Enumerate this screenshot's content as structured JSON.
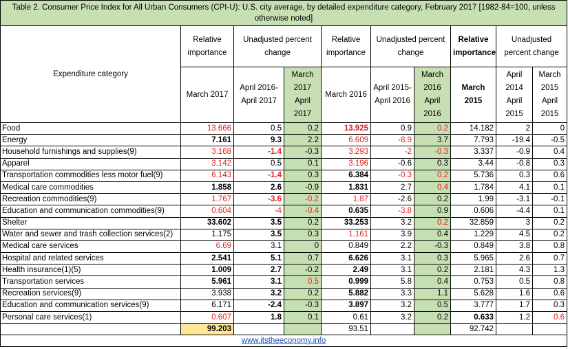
{
  "title": "Table 2. Consumer Price Index for All Urban Consumers (CPI-U): U.S. city average, by detailed expenditure category, February 2017 [1982-84=100, unless otherwise noted]",
  "header": {
    "category_label": "Expenditure category",
    "groups": [
      {
        "label": "Relative importance",
        "bold": false
      },
      {
        "label": "Unadjusted percent change",
        "bold": false
      },
      {
        "label": "Relative importance",
        "bold": false
      },
      {
        "label": "Unadjusted percent change",
        "bold": false
      },
      {
        "label": "Relative importance",
        "bold": true
      },
      {
        "label": "Unadjusted percent change",
        "bold": false
      }
    ],
    "subheaders": [
      {
        "label": "March 2017",
        "bold": false,
        "green": false
      },
      {
        "label": "April 2016-April 2017",
        "bold": false,
        "green": false
      },
      {
        "label": "March 2017 April 2017",
        "bold": false,
        "green": true
      },
      {
        "label": "March 2016",
        "bold": false,
        "green": false
      },
      {
        "label": "April 2015-April 2016",
        "bold": false,
        "green": false
      },
      {
        "label": "March 2016 April 2016",
        "bold": false,
        "green": true
      },
      {
        "label": "March 2015",
        "bold": true,
        "green": false
      },
      {
        "label": "April 2014 April 2015",
        "bold": false,
        "green": false
      },
      {
        "label": "March 2015 April 2015",
        "bold": false,
        "green": false
      }
    ]
  },
  "colors": {
    "red": "#e02020",
    "green": "#c6e0b4",
    "yellow": "#ffe699",
    "link": "#1a52b8"
  },
  "rows": [
    {
      "category": "Food",
      "cells": [
        {
          "v": "13.666",
          "red": true
        },
        {
          "v": "0.5"
        },
        {
          "v": "0.2"
        },
        {
          "v": "13.925",
          "red": true,
          "bold": true
        },
        {
          "v": "0.9"
        },
        {
          "v": "0.2",
          "red": true
        },
        {
          "v": "14.182"
        },
        {
          "v": "2"
        },
        {
          "v": "0"
        }
      ]
    },
    {
      "category": "Energy",
      "cells": [
        {
          "v": "7.161",
          "bold": true
        },
        {
          "v": "9.3",
          "bold": true
        },
        {
          "v": "2.2"
        },
        {
          "v": "6.609",
          "red": true
        },
        {
          "v": "-8.9",
          "red": true
        },
        {
          "v": "3.7"
        },
        {
          "v": "7.793"
        },
        {
          "v": "-19.4"
        },
        {
          "v": "-0.5"
        }
      ]
    },
    {
      "category": "Household furnishings and supplies(9)",
      "cells": [
        {
          "v": "3.168",
          "red": true
        },
        {
          "v": "-1.4",
          "red": true,
          "bold": true
        },
        {
          "v": "-0.3"
        },
        {
          "v": "3.293",
          "red": true
        },
        {
          "v": "-2",
          "red": true
        },
        {
          "v": "-0.3",
          "red": true
        },
        {
          "v": "3.337"
        },
        {
          "v": "-0.9"
        },
        {
          "v": "0.4"
        }
      ]
    },
    {
      "category": "Apparel",
      "cells": [
        {
          "v": "3.142",
          "red": true
        },
        {
          "v": "0.5"
        },
        {
          "v": "0.1"
        },
        {
          "v": "3.196",
          "red": true
        },
        {
          "v": "-0.6"
        },
        {
          "v": "0.3"
        },
        {
          "v": "3.44"
        },
        {
          "v": "-0.8"
        },
        {
          "v": "0.3"
        }
      ]
    },
    {
      "category": "Transportation commodities less motor fuel(9)",
      "cells": [
        {
          "v": "6.143",
          "red": true
        },
        {
          "v": "-1.4",
          "red": true,
          "bold": true
        },
        {
          "v": "0.3"
        },
        {
          "v": "6.384",
          "bold": true
        },
        {
          "v": "-0.3",
          "red": true
        },
        {
          "v": "0.2",
          "red": true
        },
        {
          "v": "5.736"
        },
        {
          "v": "0.3"
        },
        {
          "v": "0.6"
        }
      ]
    },
    {
      "category": "Medical care commodities",
      "cells": [
        {
          "v": "1.858",
          "bold": true
        },
        {
          "v": "2.6",
          "bold": true
        },
        {
          "v": "-0.9"
        },
        {
          "v": "1.831",
          "bold": true
        },
        {
          "v": "2.7"
        },
        {
          "v": "0.4",
          "red": true
        },
        {
          "v": "1.784"
        },
        {
          "v": "4.1"
        },
        {
          "v": "0.1"
        }
      ]
    },
    {
      "category": "Recreation commodities(9)",
      "cells": [
        {
          "v": "1.767",
          "red": true
        },
        {
          "v": "-3.6",
          "red": true,
          "bold": true
        },
        {
          "v": "-0.2",
          "red": true
        },
        {
          "v": "1.87",
          "red": true
        },
        {
          "v": "-2.6"
        },
        {
          "v": "0.2"
        },
        {
          "v": "1.99"
        },
        {
          "v": "-3.1"
        },
        {
          "v": "-0.1"
        }
      ]
    },
    {
      "category": "Education and communication commodities(9)",
      "cells": [
        {
          "v": "0.604",
          "red": true
        },
        {
          "v": "-4",
          "red": true
        },
        {
          "v": "-0.4",
          "red": true
        },
        {
          "v": "0.635",
          "bold": true
        },
        {
          "v": "-3.8",
          "red": true
        },
        {
          "v": "0.9"
        },
        {
          "v": "0.606"
        },
        {
          "v": "-4.4"
        },
        {
          "v": "0.1"
        }
      ]
    },
    {
      "category": "Shelter",
      "cells": [
        {
          "v": "33.602",
          "bold": true
        },
        {
          "v": "3.5",
          "bold": true
        },
        {
          "v": "0.2"
        },
        {
          "v": "33.253",
          "bold": true
        },
        {
          "v": "3.2"
        },
        {
          "v": "0.2",
          "red": true
        },
        {
          "v": "32.859"
        },
        {
          "v": "3"
        },
        {
          "v": "0.2"
        }
      ]
    },
    {
      "category": "Water and sewer and trash collection services(2)",
      "cells": [
        {
          "v": "1.175"
        },
        {
          "v": "3.5",
          "bold": true
        },
        {
          "v": "0.3"
        },
        {
          "v": "1.161",
          "red": true
        },
        {
          "v": "3.9"
        },
        {
          "v": "0.4"
        },
        {
          "v": "1.229"
        },
        {
          "v": "4.5"
        },
        {
          "v": "0.2"
        }
      ]
    },
    {
      "category": "Medical care services",
      "cells": [
        {
          "v": "6.69",
          "red": true
        },
        {
          "v": "3.1"
        },
        {
          "v": "0"
        },
        {
          "v": "0.849"
        },
        {
          "v": "2.2"
        },
        {
          "v": "-0.3"
        },
        {
          "v": "0.849"
        },
        {
          "v": "3.8"
        },
        {
          "v": "0.8"
        }
      ]
    },
    {
      "category": "Hospital and related services",
      "cells": [
        {
          "v": "2.541",
          "bold": true
        },
        {
          "v": "5.1",
          "bold": true
        },
        {
          "v": "0.7"
        },
        {
          "v": "6.626",
          "bold": true
        },
        {
          "v": "3.1"
        },
        {
          "v": "0.3"
        },
        {
          "v": "5.965"
        },
        {
          "v": "2.6"
        },
        {
          "v": "0.7"
        }
      ]
    },
    {
      "category": "Health insurance(1)(5)",
      "cells": [
        {
          "v": "1.009",
          "bold": true
        },
        {
          "v": "2.7",
          "bold": true
        },
        {
          "v": "-0.2"
        },
        {
          "v": "2.49",
          "bold": true
        },
        {
          "v": "3.1"
        },
        {
          "v": "0.2"
        },
        {
          "v": "2.181"
        },
        {
          "v": "4.3"
        },
        {
          "v": "1.3"
        }
      ]
    },
    {
      "category": "Transportation services",
      "cells": [
        {
          "v": "5.961",
          "bold": true
        },
        {
          "v": "3.1",
          "bold": true
        },
        {
          "v": "0.5",
          "red": true
        },
        {
          "v": "0.999",
          "bold": true
        },
        {
          "v": "5.8"
        },
        {
          "v": "0.4"
        },
        {
          "v": "0.753"
        },
        {
          "v": "0.5"
        },
        {
          "v": "0.8"
        }
      ]
    },
    {
      "category": "Recreation services(9)",
      "cells": [
        {
          "v": "3.938"
        },
        {
          "v": "3.2",
          "bold": true
        },
        {
          "v": "0.2"
        },
        {
          "v": "5.882",
          "bold": true
        },
        {
          "v": "3.3"
        },
        {
          "v": "1.1"
        },
        {
          "v": "5.628"
        },
        {
          "v": "1.6"
        },
        {
          "v": "0.6"
        }
      ]
    },
    {
      "category": "Education and communication services(9)",
      "cells": [
        {
          "v": "6.171"
        },
        {
          "v": "-2.4",
          "bold": true
        },
        {
          "v": "-0.3"
        },
        {
          "v": "3.897",
          "bold": true
        },
        {
          "v": "3.2"
        },
        {
          "v": "0.5"
        },
        {
          "v": "3.777"
        },
        {
          "v": "1.7"
        },
        {
          "v": "0.3"
        }
      ]
    },
    {
      "category": "Personal care services(1)",
      "cells": [
        {
          "v": "0.607",
          "red": true
        },
        {
          "v": "1.8",
          "bold": true
        },
        {
          "v": "0.1"
        },
        {
          "v": "0.61"
        },
        {
          "v": "3.2"
        },
        {
          "v": "0.2"
        },
        {
          "v": "0.633",
          "bold": true
        },
        {
          "v": "1.2"
        },
        {
          "v": "0.6",
          "red": true
        }
      ]
    }
  ],
  "totals": {
    "cells": [
      {
        "v": "99.203",
        "bold": true,
        "yellow": true
      },
      {
        "v": ""
      },
      {
        "v": ""
      },
      {
        "v": "93.51"
      },
      {
        "v": ""
      },
      {
        "v": ""
      },
      {
        "v": "92.742"
      },
      {
        "v": ""
      },
      {
        "v": ""
      }
    ]
  },
  "footer": {
    "link_text": "www.itstheeconomy.info"
  }
}
